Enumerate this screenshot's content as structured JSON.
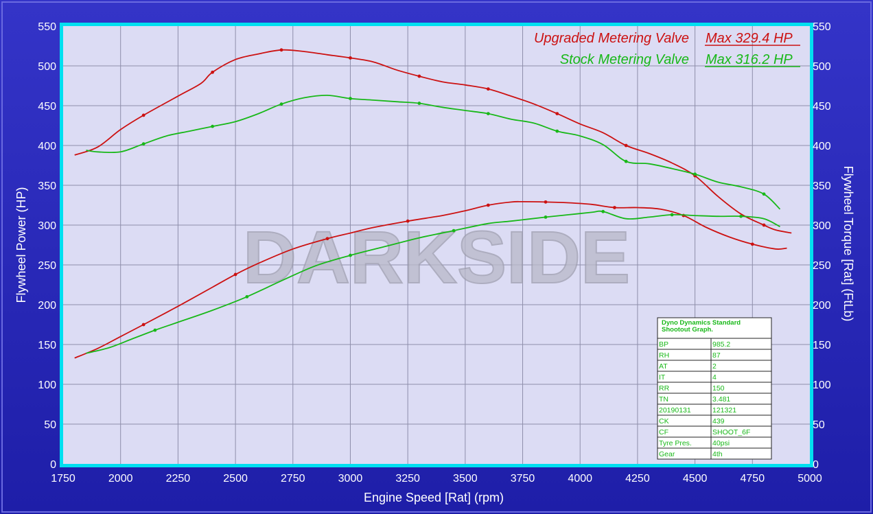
{
  "chart_data": {
    "type": "line",
    "title": "",
    "xlabel": "Engine Speed [Rat] (rpm)",
    "ylabel": "Flywheel Power (HP)",
    "y2label": "Flywheel Torque [Rat] (FtLb)",
    "xlim": [
      1750,
      5000
    ],
    "ylim": [
      0,
      550
    ],
    "y2lim": [
      0,
      550
    ],
    "x_ticks": [
      "1750",
      "2000",
      "2250",
      "2500",
      "2750",
      "3000",
      "3250",
      "3500",
      "3750",
      "4000",
      "4250",
      "4500",
      "4750",
      "5000"
    ],
    "y_ticks": [
      "0",
      "50",
      "100",
      "150",
      "200",
      "250",
      "300",
      "350",
      "400",
      "450",
      "500",
      "550"
    ],
    "grid": true,
    "watermark": "DARKSIDE",
    "legend": {
      "position": "top-right",
      "entries": [
        {
          "name": "Upgraded Metering Valve",
          "max": "Max 329.4 HP",
          "color": "#cc1111"
        },
        {
          "name": "Stock Metering Valve",
          "max": "Max 316.2 HP",
          "color": "#18b818"
        }
      ]
    },
    "series": [
      {
        "name": "Upgraded Metering Valve",
        "kind": "power",
        "axis": "left",
        "color": "#cc1111",
        "x": [
          1800,
          1900,
          2000,
          2100,
          2250,
          2400,
          2500,
          2600,
          2750,
          2900,
          3000,
          3100,
          3250,
          3400,
          3500,
          3600,
          3700,
          3750,
          3850,
          3950,
          4050,
          4150,
          4250,
          4350,
          4450,
          4550,
          4650,
          4750,
          4850,
          4900
        ],
        "y": [
          133,
          145,
          160,
          175,
          198,
          222,
          238,
          252,
          270,
          283,
          290,
          297,
          305,
          312,
          318,
          325,
          329,
          329.4,
          329,
          328,
          326,
          322,
          322,
          320,
          312,
          297,
          285,
          276,
          270,
          271
        ]
      },
      {
        "name": "Upgraded Metering Valve",
        "kind": "torque",
        "axis": "right",
        "color": "#cc1111",
        "x": [
          1800,
          1900,
          2000,
          2100,
          2250,
          2350,
          2400,
          2500,
          2600,
          2700,
          2800,
          2900,
          3000,
          3100,
          3200,
          3300,
          3400,
          3500,
          3600,
          3700,
          3800,
          3900,
          4000,
          4100,
          4200,
          4300,
          4400,
          4500,
          4600,
          4700,
          4800,
          4850,
          4920
        ],
        "y": [
          388,
          398,
          420,
          438,
          462,
          478,
          492,
          508,
          515,
          520,
          518,
          514,
          510,
          505,
          495,
          487,
          480,
          476,
          471,
          462,
          452,
          440,
          427,
          416,
          400,
          390,
          378,
          362,
          336,
          314,
          300,
          294,
          290
        ]
      },
      {
        "name": "Stock Metering Valve",
        "kind": "power",
        "axis": "left",
        "color": "#18b818",
        "x": [
          1850,
          1950,
          2050,
          2150,
          2250,
          2400,
          2550,
          2700,
          2850,
          3000,
          3150,
          3300,
          3450,
          3600,
          3700,
          3850,
          3950,
          4050,
          4100,
          4200,
          4300,
          4400,
          4500,
          4600,
          4700,
          4800,
          4870
        ],
        "y": [
          139,
          146,
          157,
          168,
          178,
          193,
          210,
          230,
          249,
          262,
          273,
          284,
          293,
          302,
          305,
          310,
          313,
          316,
          317,
          308,
          310,
          313,
          312,
          311,
          311,
          308,
          298
        ]
      },
      {
        "name": "Stock Metering Valve",
        "kind": "torque",
        "axis": "right",
        "color": "#18b818",
        "x": [
          1850,
          1900,
          2000,
          2100,
          2200,
          2300,
          2400,
          2500,
          2600,
          2700,
          2800,
          2900,
          3000,
          3100,
          3200,
          3300,
          3400,
          3500,
          3600,
          3700,
          3800,
          3900,
          4000,
          4100,
          4200,
          4300,
          4400,
          4500,
          4600,
          4700,
          4800,
          4870
        ],
        "y": [
          394,
          392,
          392,
          402,
          412,
          418,
          424,
          430,
          440,
          452,
          460,
          463,
          459,
          457,
          455,
          453,
          448,
          444,
          440,
          433,
          428,
          418,
          412,
          401,
          380,
          377,
          371,
          364,
          354,
          348,
          339,
          320
        ]
      }
    ]
  },
  "info_table": {
    "title_line1": "Dyno Dynamics Standard",
    "title_line2": "Shootout Graph.",
    "rows": [
      {
        "k": "BP",
        "v": "985.2"
      },
      {
        "k": "RH",
        "v": "87"
      },
      {
        "k": "AT",
        "v": "2"
      },
      {
        "k": "IT",
        "v": "4"
      },
      {
        "k": "RR",
        "v": "150"
      },
      {
        "k": "TN",
        "v": "3.481"
      },
      {
        "k": "20190131",
        "v": "121321"
      },
      {
        "k": "CK",
        "v": "439"
      },
      {
        "k": "CF",
        "v": "SHOOT_6F"
      },
      {
        "k": "Tyre Pres.",
        "v": "40psi"
      },
      {
        "k": "Gear",
        "v": "4th"
      }
    ]
  }
}
